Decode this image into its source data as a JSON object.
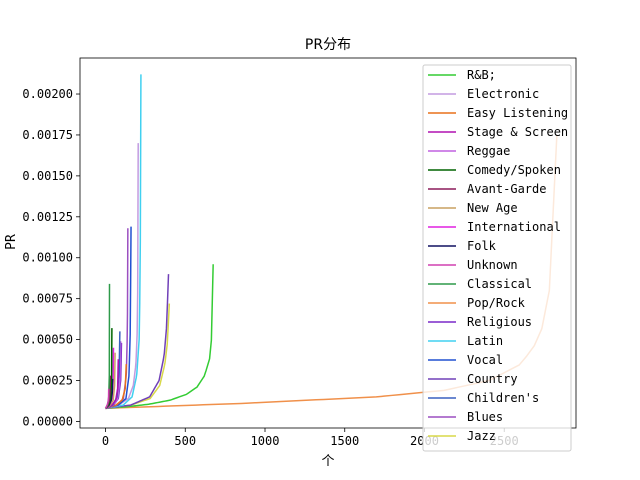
{
  "chart_data": {
    "type": "line",
    "title": "PR分布",
    "xlabel": "个",
    "ylabel": "PR",
    "xlim": [
      -160,
      2950
    ],
    "ylim": [
      -4e-05,
      0.00222
    ],
    "xticks": [
      0,
      500,
      1000,
      1500,
      2000,
      2500
    ],
    "yticks": [
      0.0,
      0.00025,
      0.0005,
      0.00075,
      0.001,
      0.00125,
      0.0015,
      0.00175,
      0.002
    ],
    "ytick_labels": [
      "0.00000",
      "0.00025",
      "0.00050",
      "0.00075",
      "0.00100",
      "0.00125",
      "0.00150",
      "0.00175",
      "0.00200"
    ],
    "legend_position": "upper right",
    "series": [
      {
        "name": "R&B;",
        "color": "#33cc33",
        "n": 675,
        "p": [
          [
            0,
            8e-05
          ],
          [
            0.2,
            9e-05
          ],
          [
            0.4,
            0.000105
          ],
          [
            0.6,
            0.00013
          ],
          [
            0.75,
            0.000165
          ],
          [
            0.85,
            0.00021
          ],
          [
            0.92,
            0.00028
          ],
          [
            0.97,
            0.00039
          ],
          [
            0.99,
            0.00055
          ],
          [
            1.0,
            0.00096
          ]
        ]
      },
      {
        "name": "Electronic",
        "color": "#c39be0",
        "n": 205,
        "p": [
          [
            0,
            8e-05
          ],
          [
            0.4,
            0.0001
          ],
          [
            0.7,
            0.00014
          ],
          [
            0.85,
            0.00022
          ],
          [
            0.93,
            0.00035
          ],
          [
            0.97,
            0.00055
          ],
          [
            0.99,
            0.0009
          ],
          [
            1.0,
            0.0017
          ]
        ]
      },
      {
        "name": "Easy Listening",
        "color": "#e8701a",
        "n": 130,
        "p": [
          [
            0,
            8e-05
          ],
          [
            0.5,
            0.0001
          ],
          [
            0.8,
            0.00013
          ],
          [
            0.95,
            0.0002
          ],
          [
            1.0,
            0.00035
          ]
        ]
      },
      {
        "name": "Stage & Screen",
        "color": "#b010b0",
        "n": 80,
        "p": [
          [
            0,
            8e-05
          ],
          [
            0.5,
            0.0001
          ],
          [
            0.8,
            0.00013
          ],
          [
            0.95,
            0.0002
          ],
          [
            1.0,
            0.00038
          ]
        ]
      },
      {
        "name": "Reggae",
        "color": "#c060e0",
        "n": 95,
        "p": [
          [
            0,
            8e-05
          ],
          [
            0.5,
            0.0001
          ],
          [
            0.8,
            0.00014
          ],
          [
            0.95,
            0.00025
          ],
          [
            1.0,
            0.00049
          ]
        ]
      },
      {
        "name": "Comedy/Spoken",
        "color": "#006400",
        "n": 40,
        "p": [
          [
            0,
            8e-05
          ],
          [
            0.5,
            0.0001
          ],
          [
            0.8,
            0.00014
          ],
          [
            0.95,
            0.00025
          ],
          [
            1.0,
            0.00057
          ]
        ]
      },
      {
        "name": "Avant-Garde",
        "color": "#8b1a5a",
        "n": 30,
        "p": [
          [
            0,
            8e-05
          ],
          [
            0.5,
            0.0001
          ],
          [
            0.8,
            0.00013
          ],
          [
            0.95,
            0.00018
          ],
          [
            1.0,
            0.00028
          ]
        ]
      },
      {
        "name": "New Age",
        "color": "#c8a060",
        "n": 60,
        "p": [
          [
            0,
            8e-05
          ],
          [
            0.5,
            0.0001
          ],
          [
            0.8,
            0.00013
          ],
          [
            0.95,
            0.00022
          ],
          [
            1.0,
            0.00042
          ]
        ]
      },
      {
        "name": "International",
        "color": "#e020e0",
        "n": 50,
        "p": [
          [
            0,
            8e-05
          ],
          [
            0.5,
            0.0001
          ],
          [
            0.8,
            0.00014
          ],
          [
            0.95,
            0.00025
          ],
          [
            1.0,
            0.00045
          ]
        ]
      },
      {
        "name": "Folk",
        "color": "#101060",
        "n": 45,
        "p": [
          [
            0,
            8e-05
          ],
          [
            0.5,
            0.0001
          ],
          [
            0.8,
            0.00013
          ],
          [
            0.95,
            0.00018
          ],
          [
            1.0,
            0.00026
          ]
        ]
      },
      {
        "name": "Unknown",
        "color": "#d040b0",
        "n": 20,
        "p": [
          [
            0,
            8e-05
          ],
          [
            0.5,
            0.0001
          ],
          [
            0.8,
            0.00012
          ],
          [
            0.95,
            0.00015
          ],
          [
            1.0,
            0.0002
          ]
        ]
      },
      {
        "name": "Classical",
        "color": "#2e9a4a",
        "n": 25,
        "p": [
          [
            0,
            8e-05
          ],
          [
            0.5,
            0.0001
          ],
          [
            0.8,
            0.00014
          ],
          [
            0.95,
            0.00028
          ],
          [
            1.0,
            0.00084
          ]
        ]
      },
      {
        "name": "Pop/Rock",
        "color": "#f0904a",
        "n": 2830,
        "p": [
          [
            0,
            8e-05
          ],
          [
            0.3,
            0.00011
          ],
          [
            0.6,
            0.00015
          ],
          [
            0.75,
            0.00019
          ],
          [
            0.85,
            0.00025
          ],
          [
            0.92,
            0.00035
          ],
          [
            0.96,
            0.0005
          ],
          [
            0.98,
            0.0007
          ],
          [
            0.99,
            0.001
          ],
          [
            1.0,
            0.00175
          ]
        ]
      },
      {
        "name": "Religious",
        "color": "#7a28c8",
        "n": 100,
        "p": [
          [
            0,
            8e-05
          ],
          [
            0.5,
            0.0001
          ],
          [
            0.8,
            0.00014
          ],
          [
            0.95,
            0.00025
          ],
          [
            1.0,
            0.00048
          ]
        ]
      },
      {
        "name": "Latin",
        "color": "#40d0f0",
        "n": 222,
        "p": [
          [
            0,
            8e-05
          ],
          [
            0.5,
            0.0001
          ],
          [
            0.75,
            0.00015
          ],
          [
            0.88,
            0.00028
          ],
          [
            0.95,
            0.0005
          ],
          [
            0.98,
            0.0009
          ],
          [
            1.0,
            0.00212
          ]
        ]
      },
      {
        "name": "Vocal",
        "color": "#2050d0",
        "n": 160,
        "p": [
          [
            0,
            8e-05
          ],
          [
            0.5,
            0.0001
          ],
          [
            0.8,
            0.00014
          ],
          [
            0.92,
            0.00028
          ],
          [
            0.97,
            0.00055
          ],
          [
            1.0,
            0.00119
          ]
        ]
      },
      {
        "name": "Country",
        "color": "#7040b8",
        "n": 395,
        "p": [
          [
            0,
            8e-05
          ],
          [
            0.4,
            0.0001
          ],
          [
            0.7,
            0.00015
          ],
          [
            0.85,
            0.00025
          ],
          [
            0.93,
            0.0004
          ],
          [
            0.97,
            0.00058
          ],
          [
            1.0,
            0.0009
          ]
        ]
      },
      {
        "name": "Children's",
        "color": "#3a60c0",
        "n": 90,
        "p": [
          [
            0,
            8e-05
          ],
          [
            0.5,
            0.0001
          ],
          [
            0.8,
            0.00015
          ],
          [
            0.95,
            0.0003
          ],
          [
            1.0,
            0.00055
          ]
        ]
      },
      {
        "name": "Blues",
        "color": "#9b4fc0",
        "n": 140,
        "p": [
          [
            0,
            8e-05
          ],
          [
            0.5,
            0.0001
          ],
          [
            0.8,
            0.00014
          ],
          [
            0.93,
            0.00028
          ],
          [
            0.98,
            0.00055
          ],
          [
            1.0,
            0.00118
          ]
        ]
      },
      {
        "name": "Jazz",
        "color": "#d8d848",
        "n": 400,
        "p": [
          [
            0,
            8e-05
          ],
          [
            0.4,
            0.0001
          ],
          [
            0.7,
            0.00014
          ],
          [
            0.85,
            0.00022
          ],
          [
            0.93,
            0.00035
          ],
          [
            0.97,
            0.00048
          ],
          [
            1.0,
            0.00072
          ]
        ]
      }
    ]
  }
}
